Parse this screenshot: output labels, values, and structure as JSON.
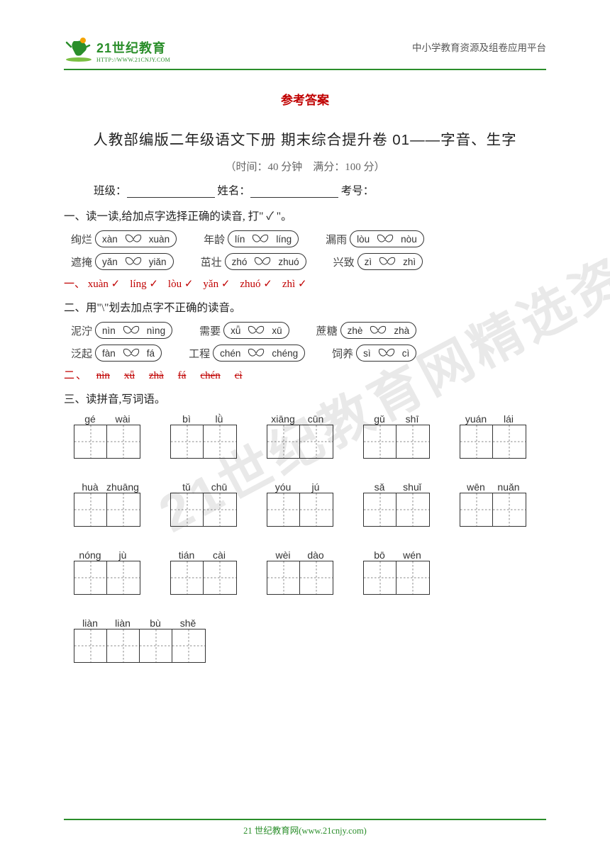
{
  "header": {
    "logo_main": "21世纪教育",
    "logo_sub": "HTTP://WWW.21CNJY.COM",
    "right_text": "中小学教育资源及组卷应用平台"
  },
  "colors": {
    "brand_green": "#2a8e2a",
    "red": "#c00000",
    "text": "#222222",
    "gray_text": "#666666",
    "border": "#333333"
  },
  "titles": {
    "answer": "参考答案",
    "main": "人教部编版二年级语文下册 期末综合提升卷 01——字音、生字",
    "sub_info": "（时间：40 分钟　满分：100 分）"
  },
  "fill": {
    "class_label": "班级：",
    "name_label": "姓名：",
    "id_label": "考号："
  },
  "section1": {
    "heading": "一、读一读,给加点字选择正确的读音, 打\" ✓ \"。",
    "rows": [
      [
        {
          "word": "绚烂",
          "a": "xàn",
          "b": "xuàn"
        },
        {
          "word": "年龄",
          "a": "lín",
          "b": "líng"
        },
        {
          "word": "漏雨",
          "a": "lòu",
          "b": "nòu"
        }
      ],
      [
        {
          "word": "遮掩",
          "a": "yǎn",
          "b": "yiǎn"
        },
        {
          "word": "茁壮",
          "a": "zhó",
          "b": "zhuó"
        },
        {
          "word": "兴致",
          "a": "zì",
          "b": "zhì"
        }
      ]
    ],
    "answer_prefix": "一、",
    "answers": [
      "xuàn ✓",
      "líng ✓",
      "lòu ✓",
      "yǎn ✓",
      "zhuó ✓",
      "zhì ✓"
    ]
  },
  "section2": {
    "heading": "二、用\"\\\"划去加点字不正确的读音。",
    "rows": [
      [
        {
          "word": "泥泞",
          "a": "nìn",
          "b": "nìng"
        },
        {
          "word": "需要",
          "a": "xǖ",
          "b": "xū"
        },
        {
          "word": "蔗糖",
          "a": "zhè",
          "b": "zhà"
        }
      ],
      [
        {
          "word": "泛起",
          "a": "fàn",
          "b": "fá"
        },
        {
          "word": "工程",
          "a": "chén",
          "b": "chéng"
        },
        {
          "word": "饲养",
          "a": "sì",
          "b": "cì"
        }
      ]
    ],
    "answer_prefix": "二、",
    "answers": [
      "nìn",
      "xǖ",
      "zhà",
      "fá",
      "chén",
      "cì"
    ]
  },
  "section3": {
    "heading": "三、读拼音,写词语。",
    "items": [
      {
        "p": [
          "gé",
          "wài"
        ],
        "n": 2
      },
      {
        "p": [
          "bì",
          "lǜ"
        ],
        "n": 2
      },
      {
        "p": [
          "xiāng",
          "cūn"
        ],
        "n": 2
      },
      {
        "p": [
          "gǔ",
          "shī"
        ],
        "n": 2
      },
      {
        "p": [
          "yuán",
          "lái"
        ],
        "n": 2
      },
      {
        "p": [
          "huà",
          "zhuāng"
        ],
        "n": 2
      },
      {
        "p": [
          "tǔ",
          "chū"
        ],
        "n": 2
      },
      {
        "p": [
          "yóu",
          "jú"
        ],
        "n": 2
      },
      {
        "p": [
          "sǎ",
          "shuǐ"
        ],
        "n": 2
      },
      {
        "p": [
          "wēn",
          "nuǎn"
        ],
        "n": 2
      },
      {
        "p": [
          "nóng",
          "jù"
        ],
        "n": 2
      },
      {
        "p": [
          "tián",
          "cài"
        ],
        "n": 2
      },
      {
        "p": [
          "wèi",
          "dào"
        ],
        "n": 2
      },
      {
        "p": [
          "bō",
          "wén"
        ],
        "n": 2
      },
      {
        "p": [
          "liàn",
          "liàn",
          "bù",
          "shě"
        ],
        "n": 4
      }
    ]
  },
  "watermark": "21世纪教育网精选资料",
  "footer": "21 世纪教育网(www.21cnjy.com)"
}
